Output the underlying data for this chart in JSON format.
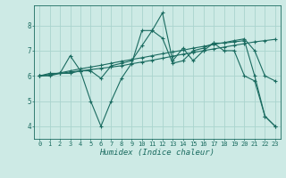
{
  "bg_color": "#cdeae5",
  "grid_color": "#aad4ce",
  "line_color": "#1a6b60",
  "x_label": "Humidex (Indice chaleur)",
  "ylim": [
    3.5,
    8.8
  ],
  "xlim": [
    -0.5,
    23.5
  ],
  "yticks": [
    4,
    5,
    6,
    7,
    8
  ],
  "xticks": [
    0,
    1,
    2,
    3,
    4,
    5,
    6,
    7,
    8,
    9,
    10,
    11,
    12,
    13,
    14,
    15,
    16,
    17,
    18,
    19,
    20,
    21,
    22,
    23
  ],
  "series": [
    [
      6.0,
      6.0,
      6.1,
      6.1,
      6.2,
      5.0,
      4.0,
      5.0,
      5.9,
      6.5,
      7.8,
      7.8,
      8.5,
      6.6,
      7.1,
      6.6,
      7.0,
      7.3,
      7.0,
      7.0,
      6.0,
      5.8,
      4.4,
      4.0
    ],
    [
      6.0,
      6.1,
      6.1,
      6.8,
      6.2,
      6.2,
      5.9,
      6.4,
      6.5,
      6.6,
      7.2,
      7.8,
      7.5,
      6.5,
      6.6,
      7.0,
      7.1,
      7.3,
      7.3,
      7.35,
      7.4,
      6.0,
      4.4,
      4.0
    ],
    [
      6.0,
      6.05,
      6.1,
      6.15,
      6.2,
      6.25,
      6.3,
      6.35,
      6.4,
      6.48,
      6.55,
      6.62,
      6.7,
      6.78,
      6.86,
      6.93,
      7.0,
      7.07,
      7.14,
      7.21,
      7.28,
      7.35,
      7.4,
      7.45
    ],
    [
      6.0,
      6.05,
      6.12,
      6.2,
      6.28,
      6.35,
      6.42,
      6.5,
      6.58,
      6.65,
      6.72,
      6.8,
      6.88,
      6.95,
      7.02,
      7.1,
      7.17,
      7.25,
      7.32,
      7.4,
      7.47,
      7.0,
      6.0,
      5.8
    ]
  ]
}
